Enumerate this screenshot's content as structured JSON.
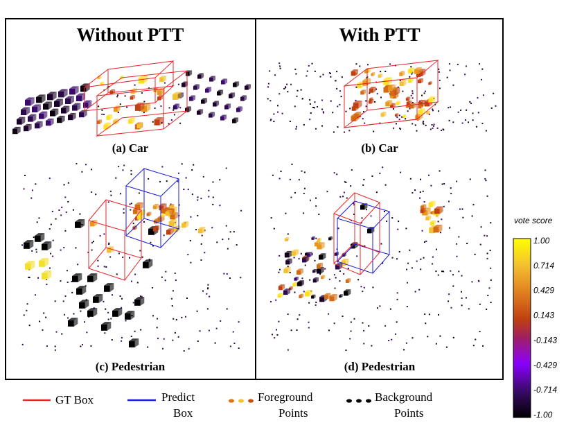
{
  "panels": {
    "left_title": "Without PTT",
    "right_title": "With PTT",
    "captions": {
      "a": "(a) Car",
      "b": "(b) Car",
      "c": "(c) Pedestrian",
      "d": "(d) Pedestrian"
    }
  },
  "legend": {
    "gt_box": "GT Box",
    "predict_box_line1": "Predict",
    "predict_box_line2": "Box",
    "foreground_line1": "Foreground",
    "foreground_line2": "Points",
    "background_line1": "Background",
    "background_line2": "Points"
  },
  "colorbar": {
    "title": "vote score",
    "ticks": [
      "1.00",
      "0.714",
      "0.429",
      "0.143",
      "-0.143",
      "-0.429",
      "-0.714",
      "-1.00"
    ],
    "stops": [
      "#ffff00",
      "#f0a020",
      "#d46010",
      "#b02810",
      "#9a1a8a",
      "#8a00ff",
      "#3a0a6a",
      "#000000"
    ]
  },
  "colors": {
    "gt_box": "#e8262a",
    "predict_box": "#1a1adb",
    "foreground": "#e08a1a",
    "background": "#120018"
  }
}
